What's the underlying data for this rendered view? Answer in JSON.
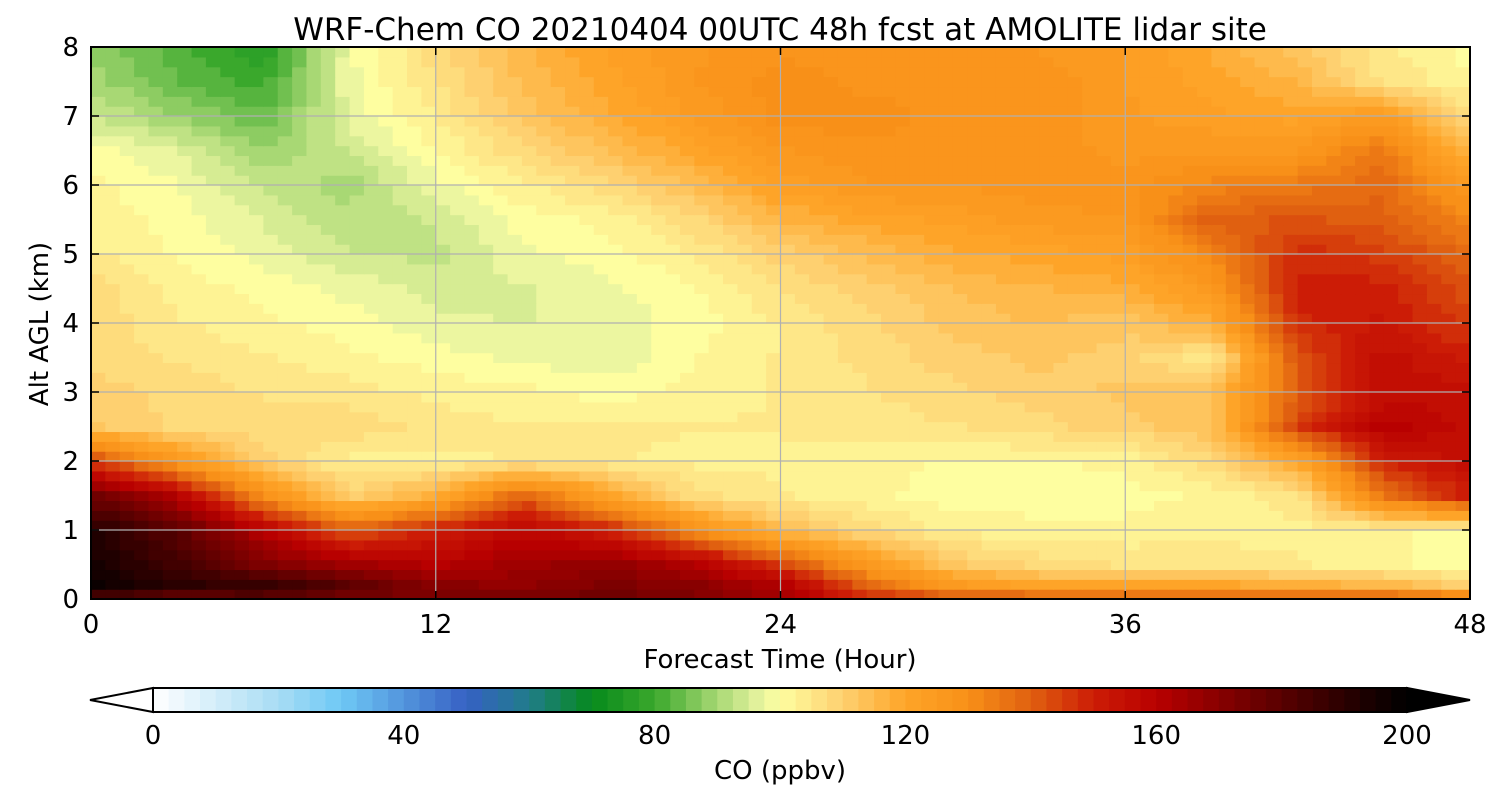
{
  "chart_data": {
    "type": "heatmap",
    "title": "WRF-Chem CO  20210404 00UTC 48h fcst at AMOLITE lidar site",
    "xlabel": "Forecast Time (Hour)",
    "ylabel": "Alt AGL (km)",
    "xlim": [
      0,
      48
    ],
    "ylim": [
      0,
      8
    ],
    "xticks": [
      "0",
      "12",
      "24",
      "36",
      "48"
    ],
    "yticks": [
      "0",
      "1",
      "2",
      "3",
      "4",
      "5",
      "6",
      "7",
      "8"
    ],
    "grid": true,
    "x_hours": [
      0,
      3,
      6,
      9,
      12,
      15,
      18,
      21,
      24,
      27,
      30,
      33,
      36,
      39,
      42,
      45,
      48
    ],
    "y_km": [
      0,
      0.2,
      0.5,
      1,
      1.5,
      2,
      2.5,
      3,
      3.5,
      4,
      4.5,
      5,
      5.5,
      6,
      6.5,
      7,
      7.5,
      8
    ],
    "co_ppbv": [
      [
        180,
        175,
        178,
        172,
        174,
        175,
        176,
        172,
        165,
        150,
        145,
        145,
        145,
        145,
        145,
        145,
        140
      ],
      [
        198,
        190,
        188,
        180,
        170,
        168,
        172,
        170,
        162,
        140,
        125,
        120,
        120,
        120,
        118,
        116,
        110
      ],
      [
        195,
        185,
        172,
        165,
        160,
        165,
        168,
        162,
        145,
        125,
        112,
        108,
        106,
        105,
        104,
        102,
        100
      ],
      [
        192,
        180,
        160,
        140,
        150,
        158,
        150,
        130,
        115,
        108,
        103,
        102,
        102,
        103,
        103,
        102,
        100
      ],
      [
        175,
        160,
        130,
        110,
        118,
        140,
        120,
        107,
        104,
        102,
        100,
        100,
        100,
        102,
        105,
        135,
        150
      ],
      [
        145,
        125,
        110,
        103,
        103,
        104,
        104,
        103,
        103,
        102,
        101,
        101,
        102,
        108,
        120,
        150,
        155
      ],
      [
        112,
        108,
        107,
        108,
        105,
        104,
        104,
        104,
        104,
        105,
        106,
        108,
        110,
        113,
        145,
        160,
        155
      ],
      [
        110,
        108,
        106,
        105,
        103,
        102,
        100,
        102,
        104,
        106,
        108,
        110,
        112,
        114,
        140,
        155,
        155
      ],
      [
        108,
        106,
        104,
        102,
        100,
        98,
        97,
        101,
        104,
        107,
        110,
        112,
        110,
        104,
        142,
        155,
        150
      ],
      [
        108,
        104,
        102,
        100,
        97,
        96,
        97,
        100,
        104,
        108,
        112,
        114,
        112,
        118,
        148,
        152,
        145
      ],
      [
        108,
        103,
        100,
        98,
        95,
        96,
        98,
        101,
        106,
        110,
        114,
        116,
        118,
        125,
        150,
        150,
        142
      ],
      [
        104,
        101,
        98,
        94,
        93,
        98,
        100,
        104,
        110,
        114,
        118,
        120,
        122,
        132,
        148,
        145,
        138
      ],
      [
        103,
        100,
        96,
        92,
        94,
        100,
        102,
        108,
        116,
        120,
        122,
        125,
        126,
        140,
        142,
        140,
        132
      ],
      [
        102,
        99,
        93,
        90,
        98,
        103,
        108,
        114,
        122,
        126,
        126,
        128,
        128,
        132,
        135,
        138,
        125
      ],
      [
        100,
        96,
        89,
        94,
        101,
        108,
        114,
        120,
        126,
        128,
        128,
        128,
        125,
        126,
        126,
        135,
        115
      ],
      [
        94,
        89,
        84,
        97,
        104,
        112,
        118,
        124,
        130,
        130,
        128,
        128,
        124,
        122,
        120,
        125,
        106
      ],
      [
        90,
        84,
        80,
        98,
        106,
        114,
        120,
        126,
        130,
        128,
        128,
        128,
        124,
        120,
        116,
        106,
        102
      ],
      [
        88,
        82,
        76,
        98,
        108,
        116,
        122,
        126,
        128,
        128,
        128,
        126,
        124,
        118,
        112,
        104,
        100
      ]
    ],
    "colorbar": {
      "label": "CO  (ppbv)",
      "min": 0,
      "max": 200,
      "ticks": [
        0,
        40,
        80,
        120,
        160,
        200
      ],
      "tick_labels": [
        "0",
        "40",
        "80",
        "120",
        "160",
        "200"
      ],
      "extend": "both",
      "stops": [
        {
          "v": 0,
          "c": "#ffffff"
        },
        {
          "v": 20,
          "c": "#a8dcf4"
        },
        {
          "v": 30,
          "c": "#6ec8f5"
        },
        {
          "v": 50,
          "c": "#3660c4"
        },
        {
          "v": 60,
          "c": "#207c8a"
        },
        {
          "v": 70,
          "c": "#068a1c"
        },
        {
          "v": 80,
          "c": "#3aa82c"
        },
        {
          "v": 90,
          "c": "#a8d874"
        },
        {
          "v": 97,
          "c": "#e8f4a0"
        },
        {
          "v": 100,
          "c": "#fefea0"
        },
        {
          "v": 110,
          "c": "#fed070"
        },
        {
          "v": 120,
          "c": "#fea428"
        },
        {
          "v": 130,
          "c": "#f89018"
        },
        {
          "v": 140,
          "c": "#e06010"
        },
        {
          "v": 150,
          "c": "#cc1c06"
        },
        {
          "v": 160,
          "c": "#b80000"
        },
        {
          "v": 175,
          "c": "#700000"
        },
        {
          "v": 190,
          "c": "#2a0000"
        },
        {
          "v": 200,
          "c": "#000000"
        }
      ]
    }
  }
}
